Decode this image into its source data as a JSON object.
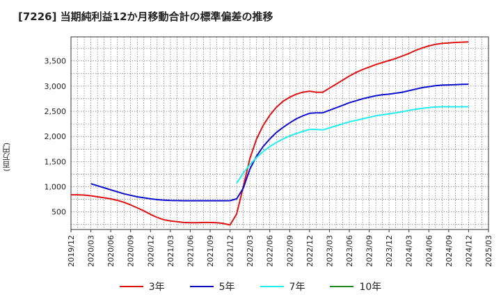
{
  "title": "[7226]  当期純利益12か月移動合計の標準偏差の推移",
  "colors": {
    "3年": "#dd1111",
    "5年": "#0b0bcc",
    "7年": "#22eeee",
    "10年": "#228822"
  },
  "chart_data": {
    "type": "line",
    "title": "[7226]  当期純利益12か月移動合計の標準偏差の推移",
    "xlabel": "",
    "ylabel": "(百万円)",
    "ylim": [
      150,
      3980
    ],
    "yticks": [
      500,
      1000,
      1500,
      2000,
      2500,
      3000,
      3500
    ],
    "ytick_labels": [
      "500",
      "1,000",
      "1,500",
      "2,000",
      "2,500",
      "3,000",
      "3,500"
    ],
    "xtick_labels": [
      "2019/12",
      "2020/03",
      "2020/06",
      "2020/09",
      "2020/12",
      "2021/03",
      "2021/06",
      "2021/09",
      "2021/12",
      "2022/03",
      "2022/06",
      "2022/09",
      "2022/12",
      "2023/03",
      "2023/06",
      "2023/09",
      "2023/12",
      "2024/03",
      "2024/06",
      "2024/09",
      "2024/12",
      "2025/03"
    ],
    "grid": true,
    "legend_position": "bottom",
    "series": [
      {
        "name": "3年",
        "x": [
          "2019/12",
          "2020/01",
          "2020/02",
          "2020/03",
          "2020/04",
          "2020/05",
          "2020/06",
          "2020/07",
          "2020/08",
          "2020/09",
          "2020/10",
          "2020/11",
          "2020/12",
          "2021/01",
          "2021/02",
          "2021/03",
          "2021/04",
          "2021/05",
          "2021/06",
          "2021/07",
          "2021/08",
          "2021/09",
          "2021/10",
          "2021/11",
          "2021/12",
          "2022/01",
          "2022/02",
          "2022/03",
          "2022/04",
          "2022/05",
          "2022/06",
          "2022/07",
          "2022/08",
          "2022/09",
          "2022/10",
          "2022/11",
          "2022/12",
          "2023/01",
          "2023/02",
          "2023/03",
          "2023/04",
          "2023/05",
          "2023/06",
          "2023/07",
          "2023/08",
          "2023/09",
          "2023/10",
          "2023/11",
          "2023/12",
          "2024/01",
          "2024/02",
          "2024/03",
          "2024/04",
          "2024/05",
          "2024/06",
          "2024/07",
          "2024/08",
          "2024/09",
          "2024/10",
          "2024/11",
          "2024/12"
        ],
        "values": [
          840,
          840,
          835,
          820,
          800,
          780,
          760,
          730,
          690,
          640,
          580,
          520,
          450,
          390,
          345,
          320,
          305,
          290,
          285,
          285,
          290,
          290,
          285,
          270,
          240,
          460,
          1000,
          1560,
          1950,
          2220,
          2420,
          2580,
          2700,
          2780,
          2840,
          2880,
          2900,
          2880,
          2880,
          2960,
          3040,
          3120,
          3200,
          3270,
          3330,
          3380,
          3430,
          3470,
          3510,
          3550,
          3600,
          3650,
          3710,
          3760,
          3800,
          3830,
          3850,
          3860,
          3870,
          3875,
          3880
        ]
      },
      {
        "name": "5年",
        "x": [
          "2020/03",
          "2020/04",
          "2020/05",
          "2020/06",
          "2020/07",
          "2020/08",
          "2020/09",
          "2020/10",
          "2020/11",
          "2020/12",
          "2021/01",
          "2021/02",
          "2021/03",
          "2021/04",
          "2021/05",
          "2021/06",
          "2021/07",
          "2021/08",
          "2021/09",
          "2021/10",
          "2021/11",
          "2021/12",
          "2022/01",
          "2022/02",
          "2022/03",
          "2022/04",
          "2022/05",
          "2022/06",
          "2022/07",
          "2022/08",
          "2022/09",
          "2022/10",
          "2022/11",
          "2022/12",
          "2023/01",
          "2023/02",
          "2023/03",
          "2023/04",
          "2023/05",
          "2023/06",
          "2023/07",
          "2023/08",
          "2023/09",
          "2023/10",
          "2023/11",
          "2023/12",
          "2024/01",
          "2024/02",
          "2024/03",
          "2024/04",
          "2024/05",
          "2024/06",
          "2024/07",
          "2024/08",
          "2024/09",
          "2024/10",
          "2024/11",
          "2024/12"
        ],
        "values": [
          1060,
          1020,
          980,
          940,
          900,
          860,
          830,
          800,
          780,
          760,
          745,
          735,
          728,
          725,
          723,
          722,
          722,
          722,
          722,
          722,
          722,
          724,
          760,
          970,
          1350,
          1610,
          1800,
          1950,
          2080,
          2180,
          2270,
          2350,
          2410,
          2460,
          2470,
          2470,
          2520,
          2570,
          2620,
          2670,
          2710,
          2750,
          2780,
          2810,
          2830,
          2840,
          2860,
          2880,
          2910,
          2940,
          2970,
          2990,
          3010,
          3020,
          3025,
          3030,
          3035,
          3038
        ]
      },
      {
        "name": "7年",
        "x": [
          "2022/01",
          "2022/02",
          "2022/03",
          "2022/04",
          "2022/05",
          "2022/06",
          "2022/07",
          "2022/08",
          "2022/09",
          "2022/10",
          "2022/11",
          "2022/12",
          "2023/01",
          "2023/02",
          "2023/03",
          "2023/04",
          "2023/05",
          "2023/06",
          "2023/07",
          "2023/08",
          "2023/09",
          "2023/10",
          "2023/11",
          "2023/12",
          "2024/01",
          "2024/02",
          "2024/03",
          "2024/04",
          "2024/05",
          "2024/06",
          "2024/07",
          "2024/08",
          "2024/09",
          "2024/10",
          "2024/11",
          "2024/12"
        ],
        "values": [
          1070,
          1270,
          1440,
          1580,
          1700,
          1800,
          1880,
          1950,
          2010,
          2060,
          2100,
          2140,
          2140,
          2130,
          2170,
          2210,
          2250,
          2290,
          2320,
          2350,
          2380,
          2410,
          2430,
          2450,
          2470,
          2490,
          2520,
          2540,
          2560,
          2575,
          2585,
          2590,
          2590,
          2590,
          2590,
          2590
        ]
      },
      {
        "name": "10年",
        "x": [],
        "values": []
      }
    ]
  }
}
